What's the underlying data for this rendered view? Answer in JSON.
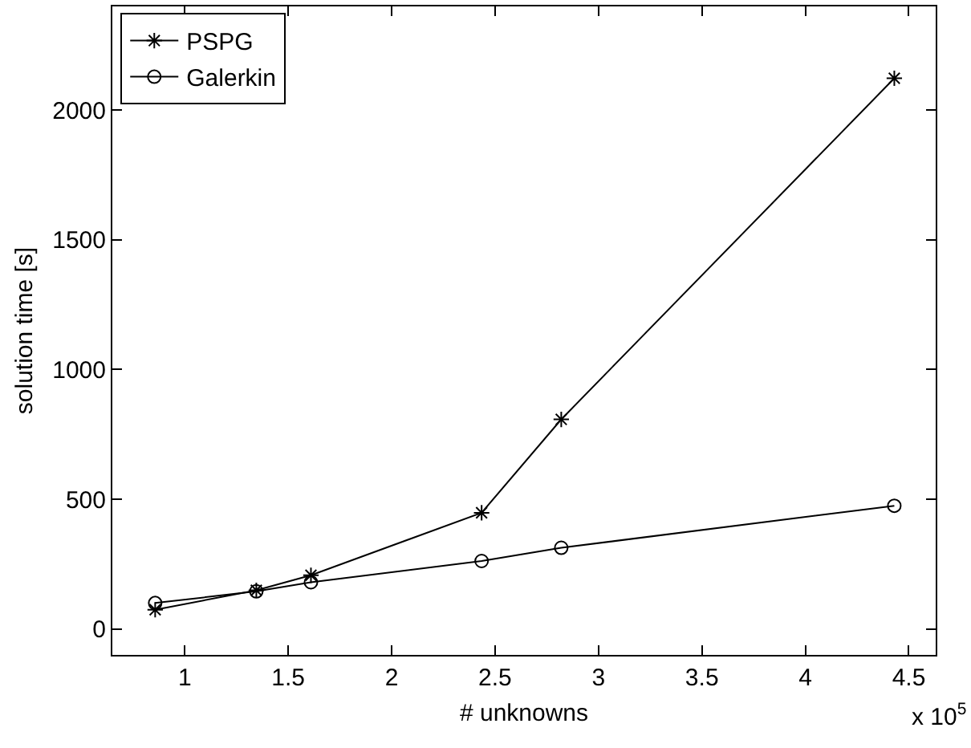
{
  "chart_data": {
    "type": "line",
    "xlabel": "# unknowns",
    "ylabel": "solution time [s]",
    "annotations": [
      "x 10$^{5}$"
    ],
    "xlim": [
      0.65,
      4.63
    ],
    "xticks": [
      1,
      1.5,
      2,
      2.5,
      3,
      3.5,
      4,
      4.5
    ],
    "ylim": [
      -100,
      2400
    ],
    "yticks": [
      0,
      500,
      1000,
      1500,
      2000
    ],
    "grid": false,
    "legend": "top left",
    "line_style": "solid",
    "series": [
      {
        "name": "PSPG",
        "color": "#000000",
        "marker": "cross",
        "x": [
          0.857,
          1.346,
          1.61,
          2.435,
          2.82,
          4.43
        ],
        "values": [
          74,
          149,
          207,
          448,
          808,
          2123
        ]
      },
      {
        "name": "Galerkin",
        "color": "#000000",
        "marker": "circle",
        "x": [
          0.857,
          1.346,
          1.61,
          2.435,
          2.82,
          4.43
        ],
        "values": [
          100,
          145,
          180,
          262,
          313,
          475
        ]
      }
    ]
  }
}
